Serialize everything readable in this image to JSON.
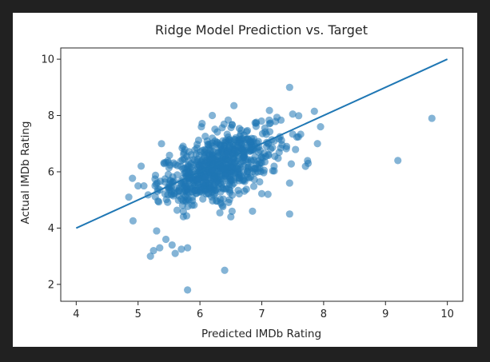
{
  "chart_data": {
    "type": "scatter",
    "title": "Ridge Model Prediction vs. Target",
    "xlabel": "Predicted IMDb Rating",
    "ylabel": "Actual IMDb Rating",
    "xlim": [
      3.75,
      10.25
    ],
    "ylim": [
      1.4,
      10.4
    ],
    "xticks": [
      4,
      5,
      6,
      7,
      8,
      9,
      10
    ],
    "yticks": [
      2,
      4,
      6,
      8,
      10
    ],
    "grid": false,
    "colors": {
      "points": "#1f77b4",
      "line": "#1f77b4"
    },
    "reference_line": {
      "x": [
        4,
        10
      ],
      "y": [
        4,
        10
      ]
    },
    "outliers": [
      {
        "x": 5.8,
        "y": 1.8
      },
      {
        "x": 6.4,
        "y": 2.5
      },
      {
        "x": 9.2,
        "y": 6.4
      },
      {
        "x": 9.75,
        "y": 7.9
      },
      {
        "x": 7.45,
        "y": 9.0
      },
      {
        "x": 5.2,
        "y": 3.0
      },
      {
        "x": 5.25,
        "y": 3.2
      },
      {
        "x": 5.35,
        "y": 3.3
      },
      {
        "x": 5.7,
        "y": 3.25
      },
      {
        "x": 5.8,
        "y": 3.3
      },
      {
        "x": 5.6,
        "y": 3.1
      },
      {
        "x": 5.45,
        "y": 3.6
      },
      {
        "x": 5.55,
        "y": 3.4
      },
      {
        "x": 5.3,
        "y": 3.9
      },
      {
        "x": 4.85,
        "y": 5.1
      },
      {
        "x": 5.05,
        "y": 6.2
      },
      {
        "x": 5.0,
        "y": 5.5
      },
      {
        "x": 6.5,
        "y": 4.4
      },
      {
        "x": 6.85,
        "y": 4.6
      },
      {
        "x": 7.45,
        "y": 4.5
      },
      {
        "x": 7.1,
        "y": 5.2
      },
      {
        "x": 7.45,
        "y": 5.6
      },
      {
        "x": 7.75,
        "y": 6.3
      },
      {
        "x": 7.9,
        "y": 7.0
      },
      {
        "x": 7.95,
        "y": 7.6
      },
      {
        "x": 7.85,
        "y": 8.15
      },
      {
        "x": 7.5,
        "y": 8.05
      },
      {
        "x": 6.55,
        "y": 8.35
      },
      {
        "x": 6.2,
        "y": 8.0
      }
    ],
    "cluster": {
      "count": 720,
      "seed": 1234,
      "mean": [
        6.3,
        6.2
      ],
      "sd": [
        0.48,
        0.72
      ],
      "correlation": 0.58,
      "x_range": [
        4.85,
        7.95
      ],
      "y_range": [
        3.7,
        8.3
      ]
    }
  }
}
